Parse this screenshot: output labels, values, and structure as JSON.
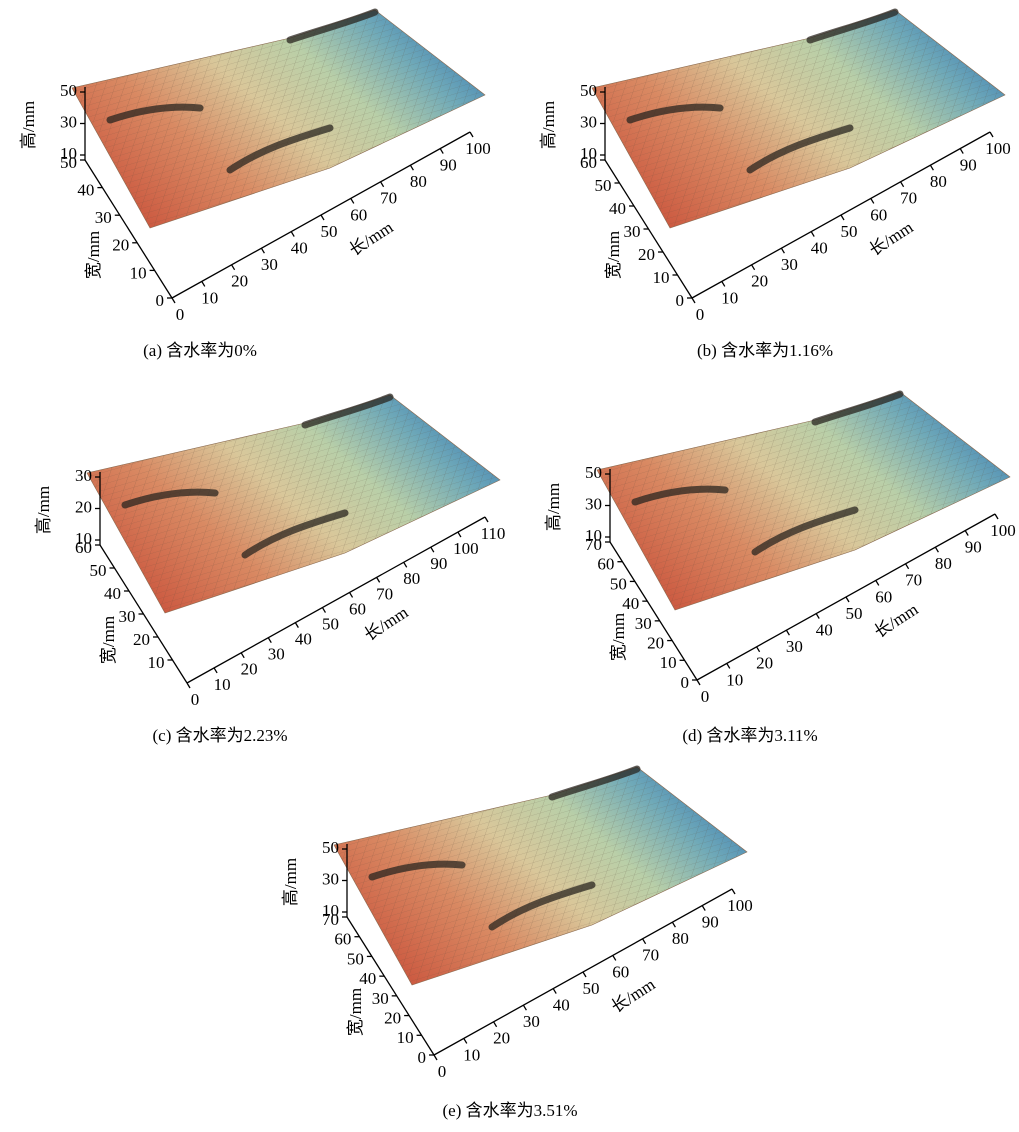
{
  "panels": [
    {
      "caption": "(a) 含水率为0%",
      "z_title": "高/mm",
      "w_title": "宽/mm",
      "l_title": "长/mm",
      "z_ticks": [
        10,
        30,
        50
      ],
      "w_ticks": [
        0,
        10,
        20,
        30,
        40,
        50
      ],
      "l_ticks": [
        0,
        10,
        20,
        30,
        40,
        50,
        60,
        70,
        80,
        90,
        100
      ]
    },
    {
      "caption": "(b) 含水率为1.16%",
      "z_title": "高/mm",
      "w_title": "宽/mm",
      "l_title": "长/mm",
      "z_ticks": [
        10,
        30,
        50
      ],
      "w_ticks": [
        0,
        10,
        20,
        30,
        40,
        50,
        60
      ],
      "l_ticks": [
        0,
        10,
        20,
        30,
        40,
        50,
        60,
        70,
        80,
        90,
        100
      ]
    },
    {
      "caption": "(c) 含水率为2.23%",
      "z_title": "高/mm",
      "w_title": "宽/mm",
      "l_title": "长/mm",
      "z_ticks": [
        10,
        20,
        30
      ],
      "w_ticks": [
        10,
        20,
        30,
        40,
        50,
        60
      ],
      "l_ticks": [
        0,
        10,
        20,
        30,
        40,
        50,
        60,
        70,
        80,
        90,
        100,
        110
      ]
    },
    {
      "caption": "(d) 含水率为3.11%",
      "z_title": "高/mm",
      "w_title": "宽/mm",
      "l_title": "长/mm",
      "z_ticks": [
        10,
        30,
        50
      ],
      "w_ticks": [
        0,
        10,
        20,
        30,
        40,
        50,
        60,
        70
      ],
      "l_ticks": [
        0,
        10,
        20,
        30,
        40,
        50,
        60,
        70,
        80,
        90,
        100
      ]
    },
    {
      "caption": "(e) 含水率为3.51%",
      "z_title": "高/mm",
      "w_title": "宽/mm",
      "l_title": "长/mm",
      "z_ticks": [
        10,
        30,
        50
      ],
      "w_ticks": [
        0,
        10,
        20,
        30,
        40,
        50,
        60,
        70
      ],
      "l_ticks": [
        0,
        10,
        20,
        30,
        40,
        50,
        60,
        70,
        80,
        90,
        100
      ]
    }
  ]
}
